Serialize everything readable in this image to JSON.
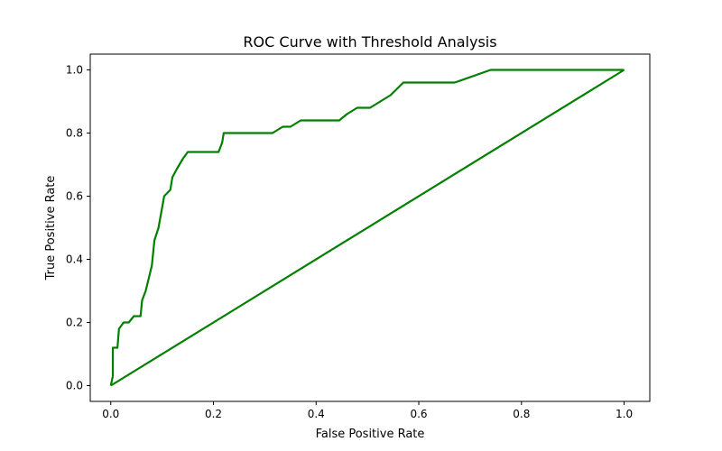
{
  "chart_data": {
    "type": "line",
    "title": "ROC Curve with Threshold Analysis",
    "xlabel": "False Positive Rate",
    "ylabel": "True Positive Rate",
    "xlim": [
      -0.04,
      1.05
    ],
    "ylim": [
      -0.05,
      1.05
    ],
    "xticks": [
      0.0,
      0.2,
      0.4,
      0.6,
      0.8,
      1.0
    ],
    "xtick_labels": [
      "0.0",
      "0.2",
      "0.4",
      "0.6",
      "0.8",
      "1.0"
    ],
    "yticks": [
      0.0,
      0.2,
      0.4,
      0.6,
      0.8,
      1.0
    ],
    "ytick_labels": [
      "0.0",
      "0.2",
      "0.4",
      "0.6",
      "0.8",
      "1.0"
    ],
    "grid": false,
    "line_color": "#008000",
    "series": [
      {
        "x": [
          0.0,
          0.004,
          0.004,
          0.007,
          0.013,
          0.016,
          0.025,
          0.035,
          0.045,
          0.058,
          0.061,
          0.068,
          0.08,
          0.085,
          0.093,
          0.104,
          0.116,
          0.12,
          0.13,
          0.141,
          0.15,
          0.21,
          0.217,
          0.22,
          0.315,
          0.335,
          0.35,
          0.37,
          0.445,
          0.46,
          0.48,
          0.505,
          0.545,
          0.57,
          0.67,
          0.74,
          1.0
        ],
        "y": [
          0.0,
          0.03,
          0.12,
          0.12,
          0.12,
          0.18,
          0.2,
          0.2,
          0.22,
          0.22,
          0.27,
          0.3,
          0.38,
          0.46,
          0.5,
          0.6,
          0.62,
          0.66,
          0.69,
          0.72,
          0.74,
          0.74,
          0.77,
          0.8,
          0.8,
          0.82,
          0.82,
          0.84,
          0.84,
          0.86,
          0.88,
          0.88,
          0.92,
          0.96,
          0.96,
          1.0,
          1.0
        ]
      },
      {
        "x": [
          0.0,
          1.0
        ],
        "y": [
          0.0,
          1.0
        ]
      }
    ]
  }
}
